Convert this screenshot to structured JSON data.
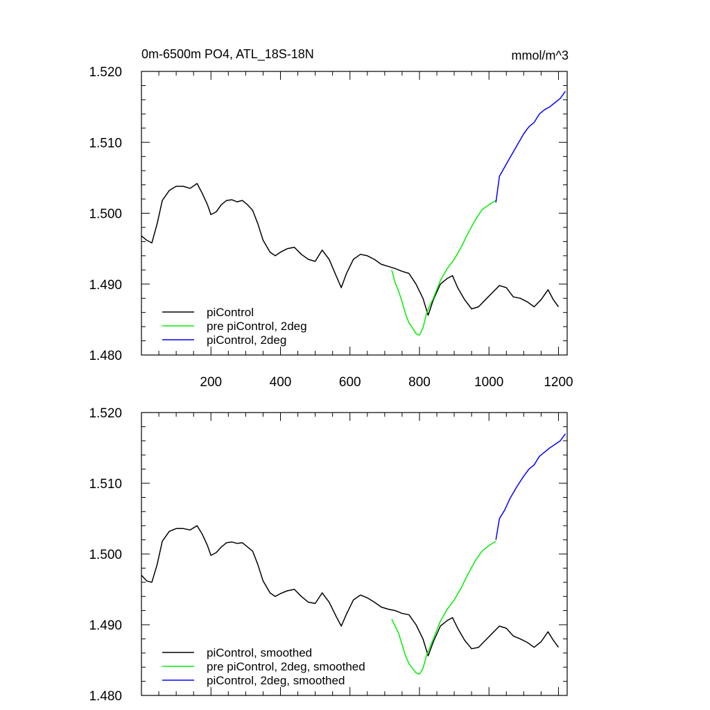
{
  "chart_data": [
    {
      "type": "line",
      "title": "0m-6500m PO4, ATL_18S-18N",
      "units": "mmol/m^3",
      "xlim": [
        0,
        1225
      ],
      "ylim": [
        1.48,
        1.52
      ],
      "x_ticks": [
        200,
        400,
        600,
        800,
        1000,
        1200
      ],
      "x_tick_labels": [
        "200",
        "400",
        "600",
        "800",
        "1000",
        "1200"
      ],
      "y_ticks": [
        1.48,
        1.49,
        1.5,
        1.51,
        1.52
      ],
      "y_tick_labels": [
        "1.480",
        "1.490",
        "1.500",
        "1.510",
        "1.520"
      ],
      "legend_position": "bottom-left",
      "series": [
        {
          "name": "piControl",
          "color": "#000000",
          "x": [
            0,
            15,
            30,
            45,
            60,
            80,
            100,
            120,
            140,
            160,
            175,
            190,
            200,
            215,
            230,
            245,
            260,
            275,
            290,
            305,
            320,
            335,
            350,
            370,
            385,
            400,
            420,
            440,
            460,
            480,
            500,
            520,
            540,
            560,
            575,
            590,
            610,
            630,
            650,
            670,
            690,
            710,
            730,
            750,
            770,
            790,
            810,
            825,
            840,
            860,
            880,
            895,
            910,
            930,
            950,
            970,
            990,
            1010,
            1030,
            1050,
            1070,
            1090,
            1110,
            1130,
            1150,
            1170,
            1185,
            1200
          ],
          "values": [
            1.4968,
            1.4962,
            1.4958,
            1.4985,
            1.5018,
            1.5032,
            1.5038,
            1.5038,
            1.5035,
            1.5042,
            1.5028,
            1.5012,
            1.4998,
            1.5002,
            1.5012,
            1.5018,
            1.5019,
            1.5016,
            1.5018,
            1.5012,
            1.5004,
            1.4985,
            1.4962,
            1.4945,
            1.494,
            1.4945,
            1.495,
            1.4952,
            1.4942,
            1.4935,
            1.4932,
            1.4948,
            1.4935,
            1.4912,
            1.4895,
            1.4915,
            1.4935,
            1.4942,
            1.494,
            1.4935,
            1.4928,
            1.4925,
            1.4922,
            1.4918,
            1.4915,
            1.49,
            1.488,
            1.4856,
            1.4878,
            1.49,
            1.4908,
            1.4912,
            1.4895,
            1.4878,
            1.4865,
            1.4868,
            1.4878,
            1.4888,
            1.4898,
            1.4895,
            1.4882,
            1.488,
            1.4875,
            1.4868,
            1.4878,
            1.4892,
            1.4878,
            1.4868
          ]
        },
        {
          "name": "pre piControl, 2deg",
          "color": "#00ee00",
          "x": [
            720,
            730,
            740,
            750,
            760,
            770,
            780,
            790,
            800,
            810,
            820,
            830,
            840,
            860,
            880,
            900,
            920,
            940,
            960,
            980,
            1000,
            1020
          ],
          "values": [
            1.492,
            1.4902,
            1.489,
            1.4875,
            1.4858,
            1.4845,
            1.4838,
            1.483,
            1.4828,
            1.4838,
            1.4858,
            1.487,
            1.488,
            1.4905,
            1.4922,
            1.4935,
            1.4952,
            1.4972,
            1.499,
            1.5005,
            1.5012,
            1.5018
          ]
        },
        {
          "name": "piControl, 2deg",
          "color": "#0000ff",
          "x": [
            1020,
            1030,
            1045,
            1060,
            1080,
            1100,
            1115,
            1130,
            1145,
            1160,
            1175,
            1190,
            1205,
            1220
          ],
          "values": [
            1.5015,
            1.5052,
            1.5065,
            1.5078,
            1.5095,
            1.5112,
            1.5122,
            1.5128,
            1.514,
            1.5146,
            1.515,
            1.5156,
            1.5162,
            1.5172
          ]
        }
      ]
    },
    {
      "type": "line",
      "xlim": [
        0,
        1225
      ],
      "ylim": [
        1.48,
        1.52
      ],
      "x_ticks": [
        200,
        400,
        600,
        800,
        1000,
        1200
      ],
      "y_ticks": [
        1.48,
        1.49,
        1.5,
        1.51,
        1.52
      ],
      "y_tick_labels": [
        "1.480",
        "1.490",
        "1.500",
        "1.510",
        "1.520"
      ],
      "legend_position": "bottom-left",
      "series": [
        {
          "name": "piControl, smoothed",
          "color": "#000000",
          "x": [
            0,
            15,
            30,
            45,
            60,
            80,
            100,
            120,
            140,
            160,
            175,
            190,
            200,
            215,
            230,
            245,
            260,
            275,
            290,
            305,
            320,
            335,
            350,
            370,
            385,
            400,
            420,
            440,
            460,
            480,
            500,
            520,
            540,
            560,
            575,
            590,
            610,
            630,
            650,
            670,
            690,
            710,
            730,
            750,
            770,
            790,
            810,
            825,
            840,
            860,
            880,
            895,
            910,
            930,
            950,
            970,
            990,
            1010,
            1030,
            1050,
            1070,
            1090,
            1110,
            1130,
            1150,
            1170,
            1185,
            1200
          ],
          "values": [
            1.497,
            1.4962,
            1.496,
            1.4985,
            1.5018,
            1.5032,
            1.5036,
            1.5036,
            1.5034,
            1.504,
            1.5028,
            1.5012,
            1.4998,
            1.5002,
            1.501,
            1.5016,
            1.5017,
            1.5015,
            1.5016,
            1.501,
            1.5004,
            1.4985,
            1.4962,
            1.4945,
            1.494,
            1.4944,
            1.4948,
            1.495,
            1.494,
            1.4932,
            1.493,
            1.4945,
            1.4932,
            1.4912,
            1.4898,
            1.4915,
            1.4935,
            1.4942,
            1.4938,
            1.4932,
            1.4925,
            1.4922,
            1.492,
            1.4916,
            1.4914,
            1.49,
            1.488,
            1.4856,
            1.4876,
            1.4898,
            1.4906,
            1.491,
            1.4895,
            1.4878,
            1.4866,
            1.4868,
            1.4878,
            1.4888,
            1.4898,
            1.4895,
            1.4884,
            1.488,
            1.4875,
            1.4868,
            1.4876,
            1.489,
            1.4878,
            1.4868
          ]
        },
        {
          "name": "pre piControl, 2deg, smoothed",
          "color": "#00ee00",
          "x": [
            720,
            730,
            740,
            750,
            760,
            770,
            780,
            790,
            800,
            810,
            820,
            830,
            840,
            860,
            880,
            900,
            920,
            940,
            960,
            980,
            1000,
            1020
          ],
          "values": [
            1.4908,
            1.4898,
            1.4888,
            1.4872,
            1.4856,
            1.4845,
            1.4838,
            1.4832,
            1.483,
            1.4838,
            1.4856,
            1.4868,
            1.488,
            1.4905,
            1.4922,
            1.4935,
            1.4952,
            1.4972,
            1.499,
            1.5004,
            1.5012,
            1.5018
          ]
        },
        {
          "name": "piControl, 2deg, smoothed",
          "color": "#0000ff",
          "x": [
            1020,
            1030,
            1045,
            1060,
            1080,
            1100,
            1115,
            1130,
            1145,
            1160,
            1175,
            1190,
            1205,
            1220
          ],
          "values": [
            1.502,
            1.505,
            1.5062,
            1.5078,
            1.5095,
            1.511,
            1.512,
            1.5126,
            1.5138,
            1.5144,
            1.515,
            1.5155,
            1.516,
            1.517
          ]
        }
      ]
    }
  ]
}
